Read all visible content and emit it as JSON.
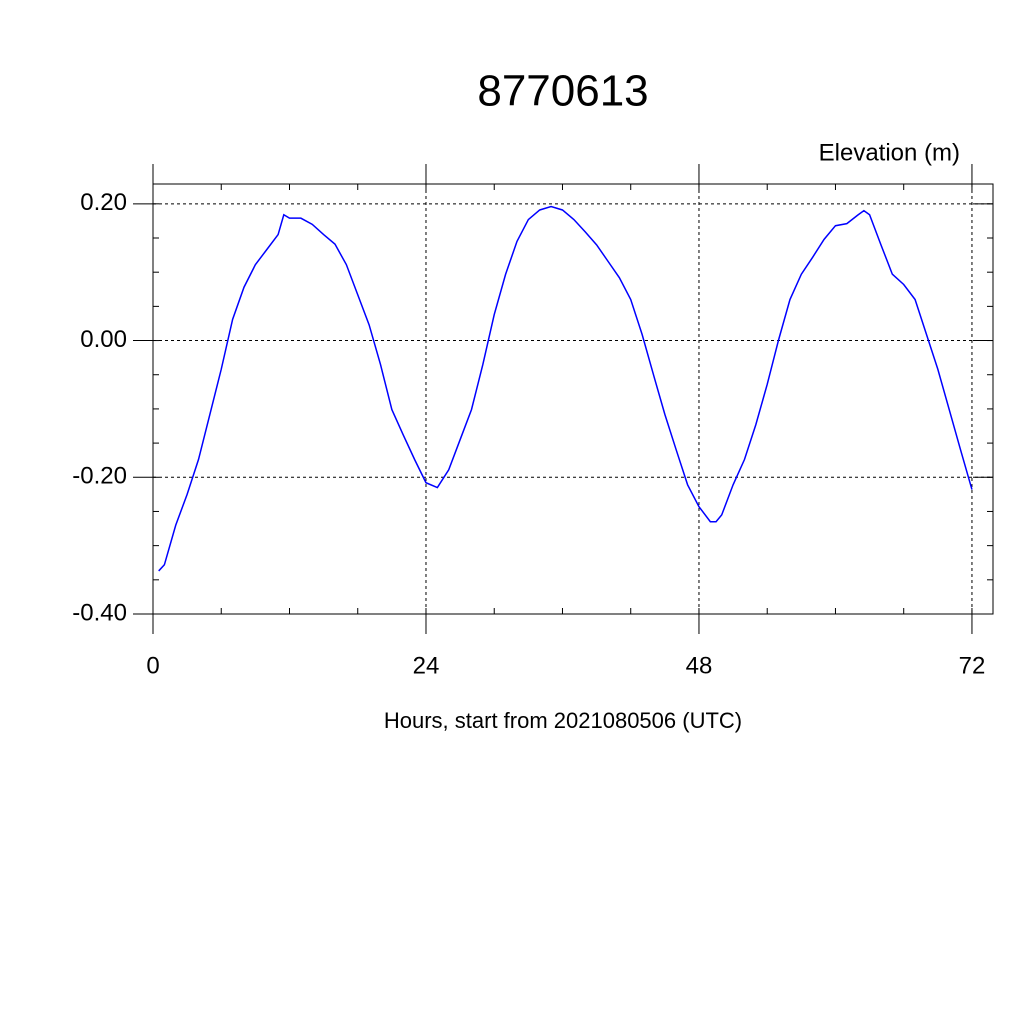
{
  "chart_data": {
    "type": "line",
    "title": "8770613",
    "y_label": "Elevation (m)",
    "x_label": "Hours, start from 2021080506 (UTC)",
    "x": [
      0.5,
      1,
      2,
      3,
      4,
      5,
      6,
      7,
      8,
      9,
      10,
      11,
      11.5,
      12,
      13,
      14,
      15,
      16,
      17,
      18,
      19,
      20,
      21,
      22,
      23,
      24,
      25,
      26,
      27,
      28,
      29,
      30,
      31,
      32,
      33,
      34,
      35,
      36,
      37,
      38,
      39,
      40,
      41,
      42,
      43,
      44,
      45,
      46,
      47,
      48,
      49,
      49.5,
      50,
      51,
      52,
      53,
      54,
      55,
      56,
      57,
      58,
      59,
      60,
      61,
      62,
      62.5,
      63,
      64,
      65,
      66,
      67,
      68,
      69,
      70,
      71,
      72
    ],
    "series": [
      {
        "color": "#0000ff",
        "values": [
          -0.337,
          -0.328,
          -0.27,
          -0.225,
          -0.174,
          -0.108,
          -0.042,
          0.031,
          0.078,
          0.111,
          0.133,
          0.155,
          0.184,
          0.179,
          0.179,
          0.17,
          0.155,
          0.141,
          0.111,
          0.067,
          0.023,
          -0.035,
          -0.101,
          -0.138,
          -0.174,
          -0.208,
          -0.215,
          -0.189,
          -0.145,
          -0.101,
          -0.035,
          0.038,
          0.097,
          0.145,
          0.177,
          0.191,
          0.196,
          0.191,
          0.177,
          0.159,
          0.14,
          0.116,
          0.092,
          0.06,
          0.009,
          -0.05,
          -0.108,
          -0.16,
          -0.211,
          -0.243,
          -0.265,
          -0.265,
          -0.255,
          -0.211,
          -0.174,
          -0.123,
          -0.064,
          0.001,
          0.06,
          0.097,
          0.122,
          0.148,
          0.168,
          0.171,
          0.184,
          0.19,
          0.184,
          0.14,
          0.097,
          0.082,
          0.06,
          0.009,
          -0.042,
          -0.101,
          -0.16,
          -0.218
        ]
      }
    ],
    "xlim": [
      0,
      73.85
    ],
    "ylim": [
      -0.4,
      0.229
    ],
    "xticks": [
      0,
      24,
      48,
      72
    ],
    "yticks": [
      {
        "value": -0.4,
        "label": "-0.40"
      },
      {
        "value": -0.2,
        "label": "-0.20"
      },
      {
        "value": 0,
        "label": "0.00"
      },
      {
        "value": 0.2,
        "label": "0.20"
      }
    ],
    "x_minor_step": 6,
    "y_minor_step": 0.05,
    "grid": true
  }
}
